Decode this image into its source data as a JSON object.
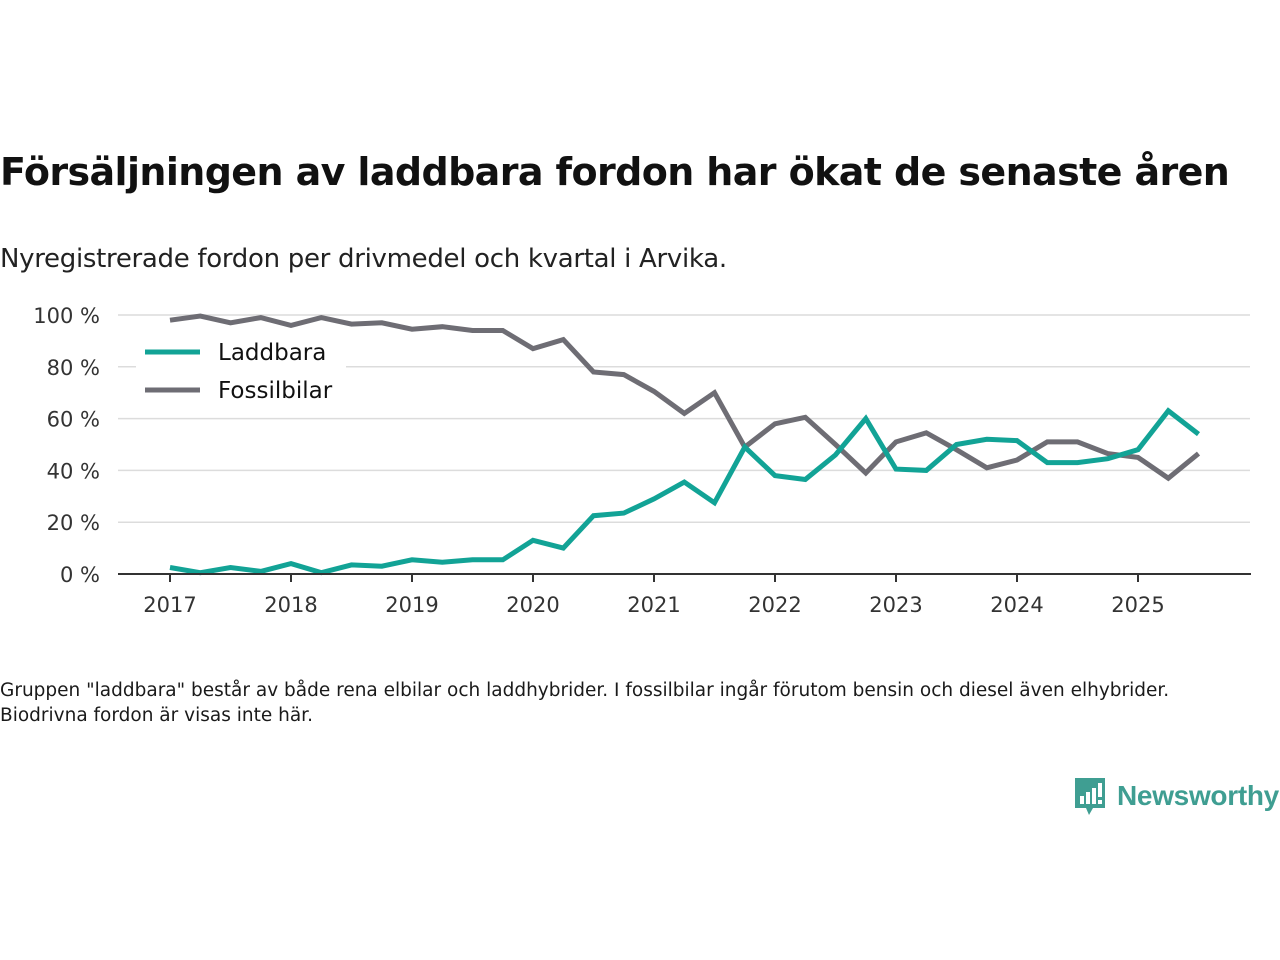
{
  "title": "Försäljningen av laddbara fordon har ökat de senaste åren",
  "subtitle": "Nyregistrerade fordon per drivmedel och kvartal i Arvika.",
  "footnote": "Gruppen \"laddbara\" består av både rena elbilar och laddhybrider. I fossilbilar ingår förutom bensin och diesel även elhybrider. Biodrivna fordon är visas inte här.",
  "logo": {
    "text": "Newsworthy",
    "icon": "newsworthy-logo-icon",
    "color": "#3f9e92"
  },
  "chart_data": {
    "type": "line",
    "title": "Försäljningen av laddbara fordon har ökat de senaste åren",
    "subtitle": "Nyregistrerade fordon per drivmedel och kvartal i Arvika.",
    "xlabel": "",
    "ylabel": "",
    "x_start": 2017,
    "x_step": 0.25,
    "x_ticks": [
      2017,
      2018,
      2019,
      2020,
      2021,
      2022,
      2023,
      2024,
      2025
    ],
    "x_tick_labels": [
      "2017",
      "2018",
      "2019",
      "2020",
      "2021",
      "2022",
      "2023",
      "2024",
      "2025"
    ],
    "xlim": [
      2016.6,
      2026.0
    ],
    "ylim": [
      0,
      100
    ],
    "y_ticks": [
      0,
      20,
      40,
      60,
      80,
      100
    ],
    "y_tick_labels": [
      "0 %",
      "20 %",
      "40 %",
      "60 %",
      "80 %",
      "100 %"
    ],
    "grid": true,
    "legend_position": "top-left",
    "series": [
      {
        "name": "Laddbara",
        "color": "#12a396",
        "values": [
          2.5,
          0.5,
          2.5,
          1,
          4,
          0.5,
          3.5,
          3,
          5.5,
          4.5,
          5.5,
          5.5,
          13,
          10,
          22.5,
          23.5,
          29,
          35.5,
          27.5,
          49,
          38,
          36.5,
          46,
          60,
          40.5,
          40,
          50,
          52,
          51.5,
          43,
          43,
          44.5,
          48,
          63,
          54
        ]
      },
      {
        "name": "Fossilbilar",
        "color": "#6e6d74",
        "values": [
          98,
          99.6,
          97,
          99,
          96,
          99,
          96.5,
          97,
          94.5,
          95.5,
          94,
          94,
          87,
          90.5,
          78,
          77,
          70.5,
          62,
          70,
          49,
          58,
          60.5,
          50,
          39,
          51,
          54.5,
          48,
          41,
          44,
          51,
          51,
          46.5,
          45,
          37,
          46.5
        ]
      }
    ]
  }
}
